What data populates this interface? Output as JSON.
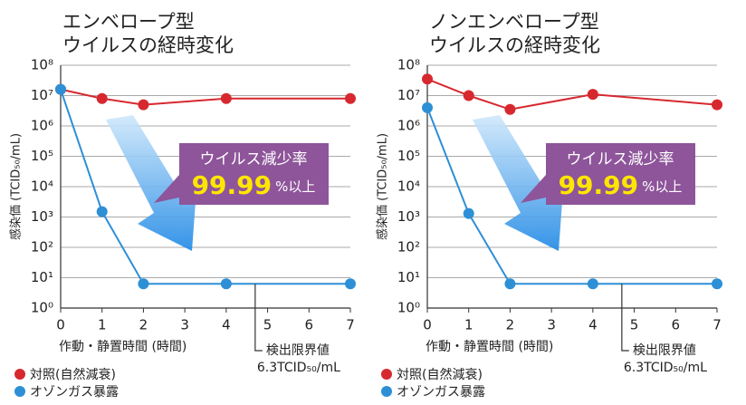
{
  "chart_data": [
    {
      "type": "line",
      "title": [
        "エンベロープ型",
        "ウイルスの経時変化"
      ],
      "x_label": "作動・静置時間 (時間)",
      "y_label": "感染価 (TCID₅₀/mL)",
      "x": [
        0,
        1,
        2,
        4,
        7
      ],
      "xlim": [
        0,
        7
      ],
      "xticks": [
        0,
        1,
        2,
        3,
        4,
        5,
        6,
        7
      ],
      "ylim": [
        1,
        100000000
      ],
      "log_scale": true,
      "grid": true,
      "yticks": [
        {
          "value": 1,
          "label": "10⁰"
        },
        {
          "value": 10,
          "label": "10¹"
        },
        {
          "value": 100,
          "label": "10²"
        },
        {
          "value": 1000,
          "label": "10³"
        },
        {
          "value": 10000,
          "label": "10⁴"
        },
        {
          "value": 100000,
          "label": "10⁵"
        },
        {
          "value": 1000000,
          "label": "10⁶"
        },
        {
          "value": 10000000,
          "label": "10⁷"
        },
        {
          "value": 100000000,
          "label": "10⁸"
        }
      ],
      "series": [
        {
          "name": "対照(自然減衰)",
          "color": "#d7282f",
          "values": [
            16000000,
            8000000,
            5000000,
            8000000,
            8000000
          ]
        },
        {
          "name": "オゾンガス暴露",
          "color": "#2d8fd6",
          "values": [
            16000000,
            1500,
            6.3,
            6.3,
            6.3
          ]
        }
      ],
      "callout": {
        "line1": "ウイルス減少率",
        "number": "99.99",
        "suffix": "%以上"
      },
      "detection_limit": 6.3,
      "detection_label": [
        "検出限界値",
        "6.3TCID₅₀/mL"
      ]
    },
    {
      "type": "line",
      "title": [
        "ノンエンベロープ型",
        "ウイルスの経時変化"
      ],
      "x_label": "作動・静置時間 (時間)",
      "y_label": "感染価 (TCID₅₀/mL)",
      "x": [
        0,
        1,
        2,
        4,
        7
      ],
      "xlim": [
        0,
        7
      ],
      "xticks": [
        0,
        1,
        2,
        3,
        4,
        5,
        6,
        7
      ],
      "ylim": [
        1,
        100000000
      ],
      "log_scale": true,
      "grid": true,
      "yticks": [
        {
          "value": 1,
          "label": "10⁰"
        },
        {
          "value": 10,
          "label": "10¹"
        },
        {
          "value": 100,
          "label": "10²"
        },
        {
          "value": 1000,
          "label": "10³"
        },
        {
          "value": 10000,
          "label": "10⁴"
        },
        {
          "value": 100000,
          "label": "10⁵"
        },
        {
          "value": 1000000,
          "label": "10⁶"
        },
        {
          "value": 10000000,
          "label": "10⁷"
        },
        {
          "value": 100000000,
          "label": "10⁸"
        }
      ],
      "series": [
        {
          "name": "対照(自然減衰)",
          "color": "#d7282f",
          "values": [
            35000000,
            10000000,
            3500000,
            11000000,
            5000000
          ]
        },
        {
          "name": "オゾンガス暴露",
          "color": "#2d8fd6",
          "values": [
            4000000,
            1300,
            6.3,
            6.3,
            6.3
          ]
        }
      ],
      "callout": {
        "line1": "ウイルス減少率",
        "number": "99.99",
        "suffix": "%以上"
      },
      "detection_limit": 6.3,
      "detection_label": [
        "検出限界値",
        "6.3TCID₅₀/mL"
      ]
    }
  ]
}
